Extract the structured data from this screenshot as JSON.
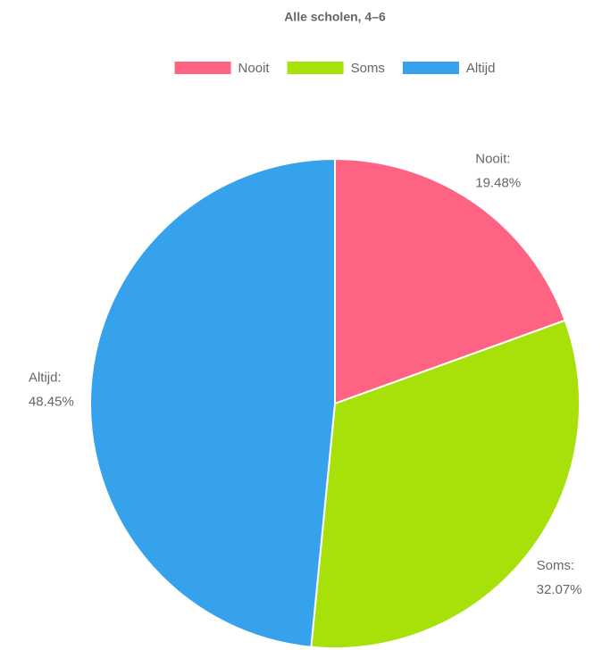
{
  "chart_data": {
    "type": "pie",
    "title": "Alle scholen, 4–6",
    "categories": [
      "Nooit",
      "Soms",
      "Altijd"
    ],
    "category_labels": [
      "Nooit:",
      "Soms:",
      "Altijd:"
    ],
    "values": [
      19.48,
      32.07,
      48.45
    ],
    "value_labels": [
      "19.48%",
      "32.07%",
      "48.45%"
    ],
    "colors": [
      "#ff6384",
      "#a8e00a",
      "#36a2eb"
    ],
    "legend": "top"
  }
}
